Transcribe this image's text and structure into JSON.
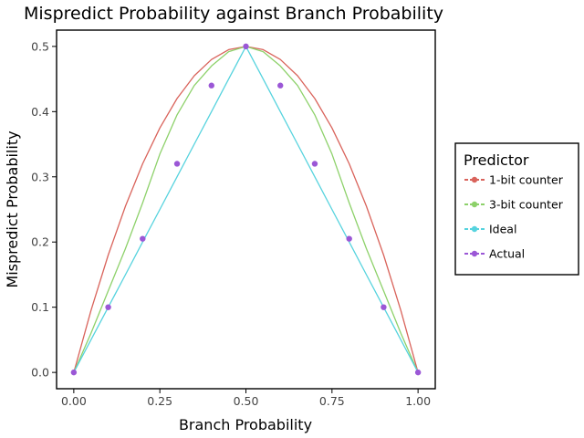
{
  "chart_data": {
    "type": "line",
    "title": "Mispredict Probability against Branch Probability",
    "xlabel": "Branch Probability",
    "ylabel": "Mispredict Probability",
    "xlim": [
      -0.05,
      1.05
    ],
    "ylim": [
      -0.025,
      0.525
    ],
    "xticks": [
      0,
      0.25,
      0.5,
      0.75,
      1
    ],
    "xtick_labels": [
      "0.00",
      "0.25",
      "0.50",
      "0.75",
      "1.00"
    ],
    "yticks": [
      0,
      0.1,
      0.2,
      0.3,
      0.4,
      0.5
    ],
    "ytick_labels": [
      "0.0",
      "0.1",
      "0.2",
      "0.3",
      "0.4",
      "0.5"
    ],
    "grid": false,
    "legend": {
      "title": "Predictor",
      "placement": "right"
    },
    "series": [
      {
        "name": "1-bit counter",
        "color": "#d9635b",
        "style": "line",
        "x": [
          0,
          0.05,
          0.1,
          0.15,
          0.2,
          0.25,
          0.3,
          0.35,
          0.4,
          0.45,
          0.5,
          0.55,
          0.6,
          0.65,
          0.7,
          0.75,
          0.8,
          0.85,
          0.9,
          0.95,
          1
        ],
        "y": [
          0,
          0.095,
          0.18,
          0.255,
          0.32,
          0.375,
          0.42,
          0.455,
          0.48,
          0.495,
          0.5,
          0.495,
          0.48,
          0.455,
          0.42,
          0.375,
          0.32,
          0.255,
          0.18,
          0.095,
          0
        ]
      },
      {
        "name": "3-bit counter",
        "color": "#8dd16a",
        "style": "line",
        "x": [
          0,
          0.05,
          0.1,
          0.15,
          0.2,
          0.25,
          0.3,
          0.35,
          0.4,
          0.45,
          0.5,
          0.55,
          0.6,
          0.65,
          0.7,
          0.75,
          0.8,
          0.85,
          0.9,
          0.95,
          1
        ],
        "y": [
          0,
          0.06,
          0.125,
          0.19,
          0.26,
          0.335,
          0.395,
          0.44,
          0.47,
          0.492,
          0.5,
          0.492,
          0.47,
          0.44,
          0.395,
          0.335,
          0.26,
          0.19,
          0.125,
          0.06,
          0
        ]
      },
      {
        "name": "Ideal",
        "color": "#56d3de",
        "style": "line",
        "x": [
          0,
          0.05,
          0.1,
          0.15,
          0.2,
          0.25,
          0.3,
          0.35,
          0.4,
          0.45,
          0.5,
          0.55,
          0.6,
          0.65,
          0.7,
          0.75,
          0.8,
          0.85,
          0.9,
          0.95,
          1
        ],
        "y": [
          0,
          0.05,
          0.1,
          0.15,
          0.2,
          0.25,
          0.3,
          0.35,
          0.4,
          0.45,
          0.5,
          0.45,
          0.4,
          0.35,
          0.3,
          0.25,
          0.2,
          0.15,
          0.1,
          0.05,
          0
        ]
      },
      {
        "name": "Actual",
        "color": "#9b57d6",
        "style": "points",
        "x": [
          0,
          0.1,
          0.2,
          0.3,
          0.4,
          0.5,
          0.6,
          0.7,
          0.8,
          0.9,
          1
        ],
        "y": [
          0,
          0.1,
          0.205,
          0.32,
          0.44,
          0.5,
          0.44,
          0.32,
          0.205,
          0.1,
          0
        ]
      }
    ]
  }
}
